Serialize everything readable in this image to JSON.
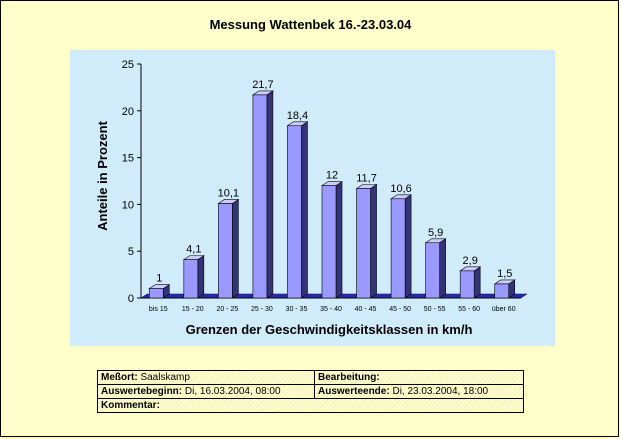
{
  "chart_data": {
    "type": "bar",
    "title": "Messung Wattenbek 16.-23.03.04",
    "xlabel": "Grenzen der Geschwindigkeitsklassen in km/h",
    "ylabel": "Anteile in Prozent",
    "categories": [
      "bis 15",
      "15 - 20",
      "20 - 25",
      "25 - 30",
      "30 - 35",
      "35 - 40",
      "40 - 45",
      "45 - 50",
      "50 - 55",
      "55 - 60",
      "über 60"
    ],
    "values": [
      1,
      4.1,
      10.1,
      21.7,
      18.4,
      12,
      11.7,
      10.6,
      5.9,
      2.9,
      1.5
    ],
    "data_labels": [
      "1",
      "4,1",
      "10,1",
      "21,7",
      "18,4",
      "12",
      "11,7",
      "10,6",
      "5,9",
      "2,9",
      "1,5"
    ],
    "ylim": [
      0,
      25
    ],
    "yticks": [
      0,
      5,
      10,
      15,
      20,
      25
    ],
    "grid": false,
    "bar_color": "#9999ff",
    "background_color": "#d0ecfa"
  },
  "info": {
    "messort_label": "Meßort:",
    "messort_value": "Saalskamp",
    "bearbeitung_label": "Bearbeitung:",
    "bearbeitung_value": "",
    "beginn_label": "Auswertebeginn:",
    "beginn_value": "Di, 16.03.2004, 08:00",
    "ende_label": "Auswerteende:",
    "ende_value": "Di, 23.03.2004, 18:00",
    "kommentar_label": "Kommentar:",
    "kommentar_value": ""
  }
}
